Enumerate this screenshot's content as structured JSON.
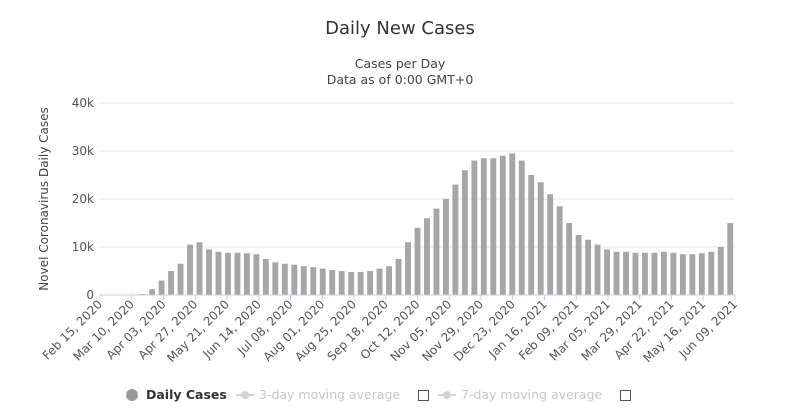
{
  "chart_data": {
    "type": "bar",
    "title": "Daily New Cases",
    "subtitle_lines": [
      "Cases per Day",
      "Data as of 0:00 GMT+0"
    ],
    "ylabel": "Novel Coronavirus Daily Cases",
    "xlabel": "",
    "ylim": [
      0,
      40000
    ],
    "y_ticks": [
      "0",
      "10k",
      "20k",
      "30k",
      "40k"
    ],
    "y_tick_values": [
      0,
      10000,
      20000,
      30000,
      40000
    ],
    "x_tick_labels": [
      "Feb 15, 2020",
      "Mar 10, 2020",
      "Apr 03, 2020",
      "Apr 27, 2020",
      "May 21, 2020",
      "Jun 14, 2020",
      "Jul 08, 2020",
      "Aug 01, 2020",
      "Aug 25, 2020",
      "Sep 18, 2020",
      "Oct 12, 2020",
      "Nov 05, 2020",
      "Nov 29, 2020",
      "Dec 23, 2020",
      "Jan 16, 2021",
      "Feb 09, 2021",
      "Mar 05, 2021",
      "Mar 29, 2021",
      "Apr 22, 2021",
      "May 16, 2021",
      "Jun 09, 2021"
    ],
    "grid": true,
    "legend_position": "bottom",
    "bar_color": "#a6a6a6",
    "series": [
      {
        "name": "Daily Cases",
        "x_start": "Feb 15, 2020",
        "x_end": "Jun 15, 2021",
        "x_interval": "1 week",
        "values": [
          0,
          0,
          0,
          0,
          200,
          1200,
          3000,
          5000,
          6500,
          10500,
          11000,
          9500,
          9000,
          8800,
          8800,
          8700,
          8500,
          7500,
          6800,
          6500,
          6300,
          6000,
          5800,
          5500,
          5200,
          5000,
          4800,
          4800,
          5000,
          5500,
          6000,
          7500,
          11000,
          14000,
          16000,
          18000,
          20000,
          23000,
          26000,
          28000,
          28500,
          28500,
          29000,
          29500,
          28000,
          25000,
          23500,
          21000,
          18500,
          15000,
          12500,
          11500,
          10500,
          9500,
          9000,
          9000,
          8800,
          8800,
          8800,
          9000,
          8800,
          8500,
          8500,
          8700,
          9000,
          10000,
          15000
        ]
      }
    ],
    "legend": [
      {
        "label": "Daily Cases",
        "active": true
      },
      {
        "label": "3-day moving average",
        "active": false,
        "checkbox": true
      },
      {
        "label": "7-day moving average",
        "active": false,
        "checkbox": true
      }
    ]
  }
}
